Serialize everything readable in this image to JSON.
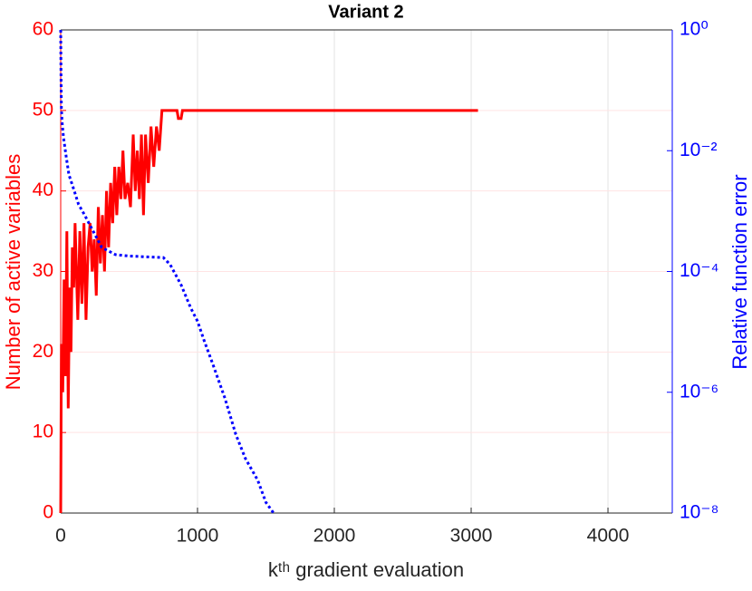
{
  "chart_data": {
    "type": "line",
    "title": "Variant 2",
    "xlabel": "kᵗʰ gradient evaluation",
    "ylabel": "Number of active variables",
    "y2label": "Relative function error",
    "xlim": [
      0,
      4470
    ],
    "xticks": [
      0,
      1000,
      2000,
      3000,
      4000
    ],
    "ylim": [
      0,
      60
    ],
    "yticks": [
      0,
      10,
      20,
      30,
      40,
      50,
      60
    ],
    "y2lim": [
      1e-08,
      1
    ],
    "y2log": true,
    "y2ticks": [
      {
        "value": 1e-08,
        "label": "10⁻⁸"
      },
      {
        "value": 1e-06,
        "label": "10⁻⁶"
      },
      {
        "value": 0.0001,
        "label": "10⁻⁴"
      },
      {
        "value": 0.01,
        "label": "10⁻²"
      },
      {
        "value": 1,
        "label": "10⁰"
      }
    ],
    "grid": true,
    "series": [
      {
        "color": "#ff0000",
        "axis": "y",
        "linestyle": "solid",
        "x": [
          0,
          5,
          15,
          25,
          35,
          45,
          55,
          65,
          75,
          85,
          95,
          105,
          115,
          125,
          140,
          155,
          170,
          185,
          200,
          215,
          230,
          245,
          260,
          275,
          290,
          305,
          320,
          335,
          350,
          365,
          380,
          395,
          410,
          425,
          440,
          455,
          470,
          490,
          510,
          530,
          545,
          560,
          575,
          590,
          605,
          620,
          640,
          660,
          680,
          700,
          720,
          740,
          850,
          860,
          880,
          890,
          3050
        ],
        "values": [
          0,
          21,
          15,
          29,
          17,
          35,
          13,
          28,
          20,
          33,
          28,
          36,
          30,
          24,
          35,
          26,
          36,
          24,
          33,
          36,
          30,
          34,
          27,
          38,
          31,
          37,
          30,
          40,
          33,
          41,
          36,
          43,
          37,
          43,
          39,
          45,
          39,
          41,
          38,
          47,
          40,
          45,
          39,
          47,
          37,
          47,
          41,
          48,
          43,
          48,
          45,
          50,
          50,
          49,
          49,
          50,
          50
        ]
      },
      {
        "color": "#0000ff",
        "axis": "y2",
        "linestyle": "dotted",
        "x": [
          0,
          2,
          5,
          10,
          20,
          40,
          60,
          90,
          130,
          170,
          230,
          300,
          400,
          500,
          750,
          800,
          880,
          950,
          1000,
          1050,
          1110,
          1200,
          1280,
          1350,
          1440,
          1500,
          1556
        ],
        "values": [
          1,
          0.2,
          0.05,
          0.03,
          0.017,
          0.008,
          0.004,
          0.0025,
          0.0013,
          0.0009,
          0.0005,
          0.00025,
          0.00019,
          0.00018,
          0.00017,
          0.00013,
          6e-05,
          2.5e-05,
          1.5e-05,
          7e-06,
          3e-06,
          8e-07,
          2e-07,
          8e-08,
          3.5e-08,
          1.5e-08,
          1e-08
        ]
      }
    ]
  }
}
